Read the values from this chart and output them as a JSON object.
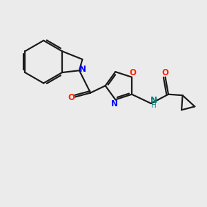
{
  "bg_color": "#ebebeb",
  "bond_color": "#1a1a1a",
  "N_color": "#0000ff",
  "O_color": "#ff2200",
  "NH_color": "#008080",
  "line_width": 1.6,
  "figsize": [
    3.0,
    3.0
  ],
  "dpi": 100,
  "xlim": [
    0,
    10
  ],
  "ylim": [
    0,
    10
  ]
}
